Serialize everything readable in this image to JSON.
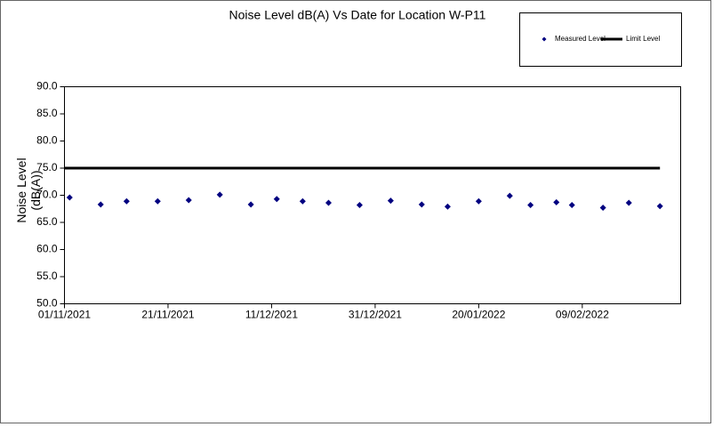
{
  "chart_data": {
    "type": "scatter",
    "title": "Noise Level dB(A) Vs Date for Location W-P11",
    "y_label": "Noise Level (dB(A))",
    "xlim": [
      "2021-11-01",
      "2022-02-28"
    ],
    "xticks": [
      {
        "value": "2021-11-01",
        "label": "01/11/2021"
      },
      {
        "value": "2021-11-21",
        "label": "21/11/2021"
      },
      {
        "value": "2021-12-11",
        "label": "11/12/2021"
      },
      {
        "value": "2021-12-31",
        "label": "31/12/2021"
      },
      {
        "value": "2022-01-20",
        "label": "20/01/2022"
      },
      {
        "value": "2022-02-09",
        "label": "09/02/2022"
      }
    ],
    "ylim": [
      50,
      90
    ],
    "yticks": [
      {
        "value": 50,
        "label": "50.0"
      },
      {
        "value": 55,
        "label": "55.0"
      },
      {
        "value": 60,
        "label": "60.0"
      },
      {
        "value": 65,
        "label": "65.0"
      },
      {
        "value": 70,
        "label": "70.0"
      },
      {
        "value": 75,
        "label": "75.0"
      },
      {
        "value": 80,
        "label": "80.0"
      },
      {
        "value": 85,
        "label": "85.0"
      },
      {
        "value": 90,
        "label": "90.0"
      }
    ],
    "series": [
      {
        "name": "Measured Level",
        "color": "#000080",
        "marker": "diamond",
        "x": [
          "2021-11-02",
          "2021-11-08",
          "2021-11-13",
          "2021-11-19",
          "2021-11-25",
          "2021-12-01",
          "2021-12-07",
          "2021-12-12",
          "2021-12-17",
          "2021-12-22",
          "2021-12-28",
          "2022-01-03",
          "2022-01-09",
          "2022-01-14",
          "2022-01-20",
          "2022-01-26",
          "2022-01-30",
          "2022-02-04",
          "2022-02-07",
          "2022-02-13",
          "2022-02-18",
          "2022-02-24"
        ],
        "values": [
          69.6,
          68.3,
          68.9,
          68.9,
          69.1,
          70.1,
          68.3,
          69.3,
          68.9,
          68.6,
          68.2,
          69.0,
          68.3,
          67.9,
          68.9,
          69.9,
          68.2,
          68.7,
          68.2,
          67.7,
          68.6,
          68.0
        ]
      },
      {
        "name": "Limit Level",
        "color": "#000000",
        "marker": "line",
        "x": [
          "2021-11-01",
          "2022-02-24"
        ],
        "values": [
          75,
          75
        ]
      }
    ],
    "legend": "top-right"
  }
}
